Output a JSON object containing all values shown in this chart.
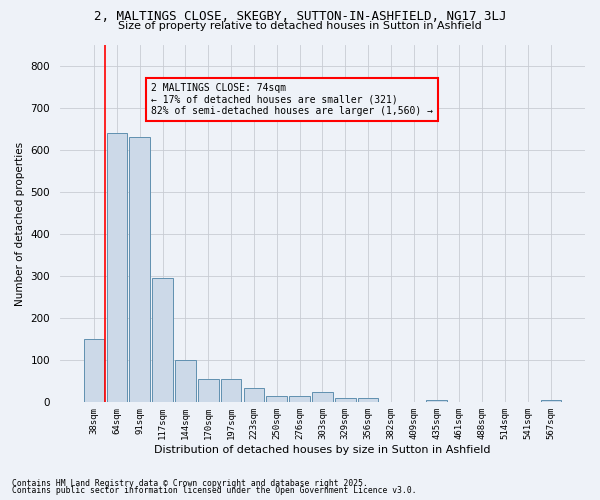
{
  "title1": "2, MALTINGS CLOSE, SKEGBY, SUTTON-IN-ASHFIELD, NG17 3LJ",
  "title2": "Size of property relative to detached houses in Sutton in Ashfield",
  "xlabel": "Distribution of detached houses by size in Sutton in Ashfield",
  "ylabel": "Number of detached properties",
  "categories": [
    "38sqm",
    "64sqm",
    "91sqm",
    "117sqm",
    "144sqm",
    "170sqm",
    "197sqm",
    "223sqm",
    "250sqm",
    "276sqm",
    "303sqm",
    "329sqm",
    "356sqm",
    "382sqm",
    "409sqm",
    "435sqm",
    "461sqm",
    "488sqm",
    "514sqm",
    "541sqm",
    "567sqm"
  ],
  "values": [
    150,
    640,
    630,
    295,
    100,
    55,
    55,
    35,
    15,
    15,
    25,
    10,
    10,
    0,
    0,
    5,
    0,
    0,
    0,
    0,
    5
  ],
  "bar_color": "#ccd9e8",
  "bar_edge_color": "#6090b0",
  "grid_color": "#c8ccd4",
  "background_color": "#eef2f8",
  "vline_color": "red",
  "vline_x": 0.5,
  "annotation_text": "2 MALTINGS CLOSE: 74sqm\n← 17% of detached houses are smaller (321)\n82% of semi-detached houses are larger (1,560) →",
  "footer1": "Contains HM Land Registry data © Crown copyright and database right 2025.",
  "footer2": "Contains public sector information licensed under the Open Government Licence v3.0.",
  "ylim": [
    0,
    850
  ],
  "yticks": [
    0,
    100,
    200,
    300,
    400,
    500,
    600,
    700,
    800
  ]
}
